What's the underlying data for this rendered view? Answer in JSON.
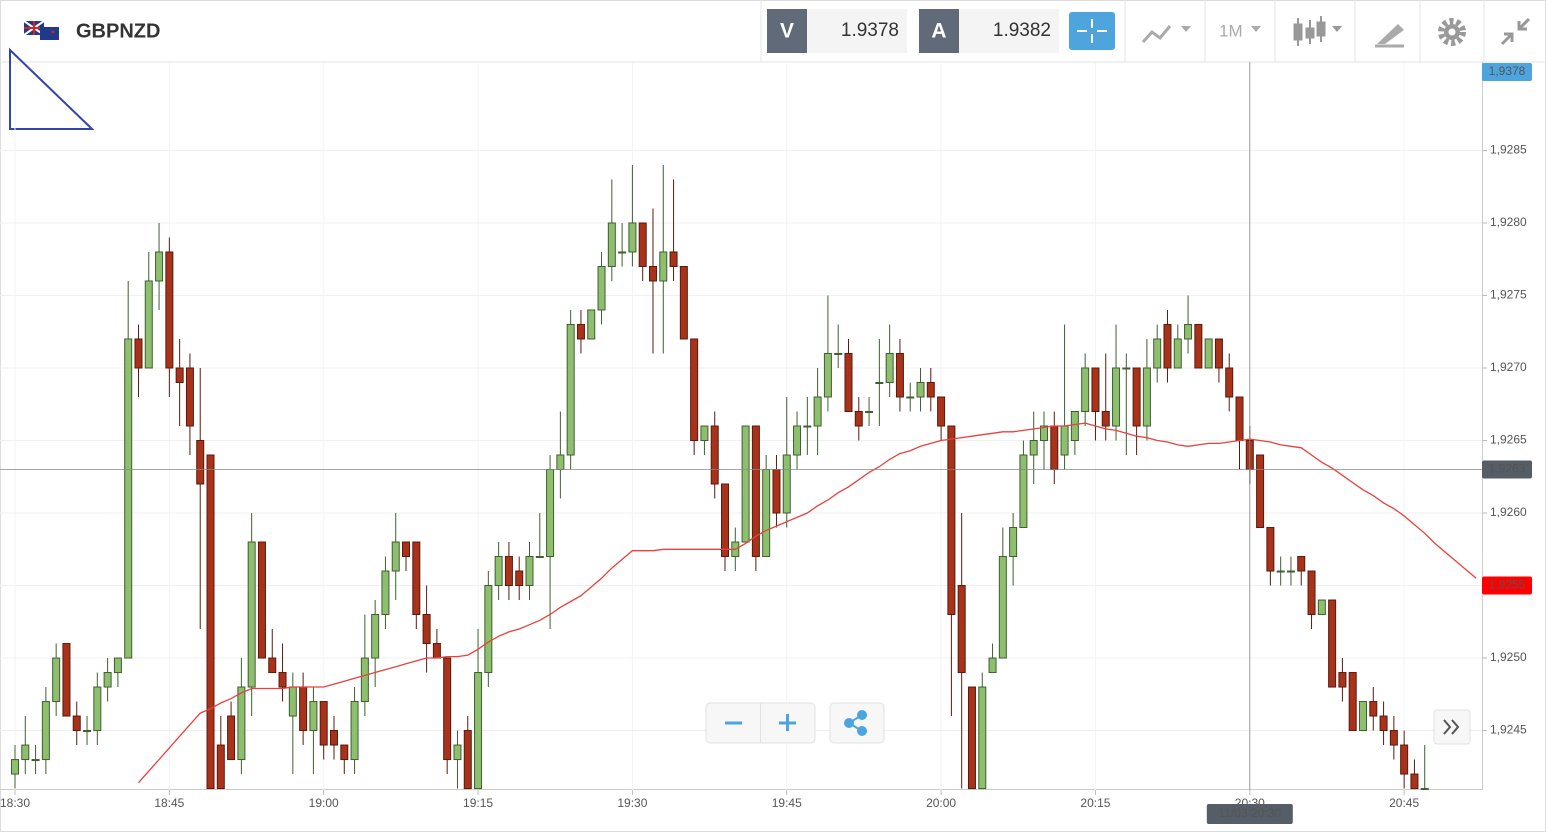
{
  "header": {
    "symbol": "GBPNZD",
    "sell_label": "V",
    "sell": 1.9378,
    "buy_label": "A",
    "buy": 1.9382,
    "timeframe": "1M"
  },
  "chart_data": {
    "type": "candlestick",
    "categories": [
      "18:30",
      null,
      null,
      null,
      null,
      null,
      null,
      null,
      null,
      null,
      null,
      null,
      null,
      null,
      null,
      "18:45",
      null,
      null,
      null,
      null,
      null,
      null,
      null,
      null,
      null,
      null,
      null,
      null,
      null,
      null,
      "19:00",
      null,
      null,
      null,
      null,
      null,
      null,
      null,
      null,
      null,
      null,
      null,
      null,
      null,
      null,
      "19:15",
      null,
      null,
      null,
      null,
      null,
      null,
      null,
      null,
      null,
      null,
      null,
      null,
      null,
      null,
      "19:30",
      null,
      null,
      null,
      null,
      null,
      null,
      null,
      null,
      null,
      null,
      null,
      null,
      null,
      null,
      "19:45",
      null,
      null,
      null,
      null,
      null,
      null,
      null,
      null,
      null,
      null,
      null,
      null,
      null,
      null,
      "20:00",
      null,
      null,
      null,
      null,
      null,
      null,
      null,
      null,
      null,
      null,
      null,
      null,
      null,
      null,
      "20:15",
      null,
      null,
      null,
      null,
      null,
      null,
      null,
      null,
      null,
      null,
      null,
      null,
      null,
      null,
      "20:30",
      null,
      null,
      null,
      null,
      null,
      null,
      null,
      null,
      null,
      null,
      null,
      null,
      null,
      null,
      "20:45",
      null,
      null,
      null,
      null,
      null,
      null,
      null
    ],
    "ohlc": [
      [
        1.9242,
        1.9244,
        1.9241,
        1.9243
      ],
      [
        1.9243,
        1.9246,
        1.9242,
        1.9244
      ],
      [
        1.9243,
        1.9244,
        1.9242,
        1.9243
      ],
      [
        1.9243,
        1.9248,
        1.9242,
        1.9247
      ],
      [
        1.9247,
        1.9251,
        1.9246,
        1.925
      ],
      [
        1.9251,
        1.9251,
        1.9246,
        1.9246
      ],
      [
        1.9246,
        1.9247,
        1.9244,
        1.9245
      ],
      [
        1.9245,
        1.9246,
        1.9244,
        1.9245
      ],
      [
        1.9245,
        1.9249,
        1.9244,
        1.9248
      ],
      [
        1.9248,
        1.925,
        1.9247,
        1.9249
      ],
      [
        1.9249,
        1.925,
        1.9248,
        1.925
      ],
      [
        1.925,
        1.9276,
        1.925,
        1.9272
      ],
      [
        1.9272,
        1.9273,
        1.9268,
        1.927
      ],
      [
        1.927,
        1.9278,
        1.927,
        1.9276
      ],
      [
        1.9276,
        1.928,
        1.9274,
        1.9278
      ],
      [
        1.9278,
        1.9279,
        1.9268,
        1.927
      ],
      [
        1.927,
        1.9272,
        1.9266,
        1.9269
      ],
      [
        1.927,
        1.9271,
        1.9264,
        1.9266
      ],
      [
        1.9265,
        1.927,
        1.9252,
        1.9262
      ],
      [
        1.9264,
        1.9264,
        1.9241,
        1.9241
      ],
      [
        1.9244,
        1.9246,
        1.9241,
        1.9241
      ],
      [
        1.9246,
        1.9247,
        1.9243,
        1.9243
      ],
      [
        1.9243,
        1.925,
        1.9242,
        1.9248
      ],
      [
        1.9248,
        1.926,
        1.9246,
        1.9258
      ],
      [
        1.9258,
        1.9258,
        1.925,
        1.925
      ],
      [
        1.925,
        1.9252,
        1.9249,
        1.9249
      ],
      [
        1.9249,
        1.9251,
        1.9247,
        1.9248
      ],
      [
        1.9246,
        1.9249,
        1.9242,
        1.9248
      ],
      [
        1.9248,
        1.9249,
        1.9244,
        1.9245
      ],
      [
        1.9245,
        1.9248,
        1.9242,
        1.9247
      ],
      [
        1.9247,
        1.9247,
        1.9243,
        1.9244
      ],
      [
        1.9245,
        1.9246,
        1.9243,
        1.9244
      ],
      [
        1.9244,
        1.9244,
        1.9242,
        1.9243
      ],
      [
        1.9243,
        1.9248,
        1.9242,
        1.9247
      ],
      [
        1.9247,
        1.9253,
        1.9246,
        1.925
      ],
      [
        1.925,
        1.9254,
        1.9248,
        1.9253
      ],
      [
        1.9253,
        1.9257,
        1.9252,
        1.9256
      ],
      [
        1.9256,
        1.926,
        1.9254,
        1.9258
      ],
      [
        1.9258,
        1.9258,
        1.9256,
        1.9257
      ],
      [
        1.9258,
        1.9258,
        1.9252,
        1.9253
      ],
      [
        1.9253,
        1.9255,
        1.9249,
        1.9251
      ],
      [
        1.9251,
        1.9252,
        1.925,
        1.925
      ],
      [
        1.925,
        1.925,
        1.9242,
        1.9243
      ],
      [
        1.9243,
        1.9245,
        1.9241,
        1.9244
      ],
      [
        1.9245,
        1.9246,
        1.9241,
        1.9241
      ],
      [
        1.9241,
        1.9252,
        1.9241,
        1.9249
      ],
      [
        1.9249,
        1.9256,
        1.9248,
        1.9255
      ],
      [
        1.9255,
        1.9258,
        1.9254,
        1.9257
      ],
      [
        1.9257,
        1.9258,
        1.9254,
        1.9255
      ],
      [
        1.9256,
        1.9257,
        1.9254,
        1.9255
      ],
      [
        1.9255,
        1.9258,
        1.9254,
        1.9257
      ],
      [
        1.9257,
        1.926,
        1.9257,
        1.9257
      ],
      [
        1.9257,
        1.9264,
        1.9252,
        1.9263
      ],
      [
        1.9263,
        1.9267,
        1.9261,
        1.9264
      ],
      [
        1.9264,
        1.9274,
        1.9263,
        1.9273
      ],
      [
        1.9273,
        1.9274,
        1.9271,
        1.9272
      ],
      [
        1.9272,
        1.9274,
        1.9272,
        1.9274
      ],
      [
        1.9274,
        1.9278,
        1.9273,
        1.9277
      ],
      [
        1.9277,
        1.9283,
        1.9276,
        1.928
      ],
      [
        1.9278,
        1.928,
        1.9277,
        1.9278
      ],
      [
        1.9278,
        1.9284,
        1.9277,
        1.928
      ],
      [
        1.928,
        1.928,
        1.9276,
        1.9277
      ],
      [
        1.9277,
        1.9281,
        1.9271,
        1.9276
      ],
      [
        1.9276,
        1.9284,
        1.9271,
        1.9278
      ],
      [
        1.9278,
        1.9283,
        1.9276,
        1.9277
      ],
      [
        1.9277,
        1.9277,
        1.9272,
        1.9272
      ],
      [
        1.9272,
        1.9272,
        1.9264,
        1.9265
      ],
      [
        1.9265,
        1.9266,
        1.9264,
        1.9266
      ],
      [
        1.9266,
        1.9267,
        1.9261,
        1.9262
      ],
      [
        1.9262,
        1.9262,
        1.9256,
        1.9257
      ],
      [
        1.9257,
        1.9259,
        1.9256,
        1.9258
      ],
      [
        1.9258,
        1.9266,
        1.9258,
        1.9266
      ],
      [
        1.9266,
        1.9266,
        1.9256,
        1.9257
      ],
      [
        1.9257,
        1.9264,
        1.9257,
        1.9263
      ],
      [
        1.9263,
        1.9264,
        1.9259,
        1.926
      ],
      [
        1.926,
        1.9268,
        1.9259,
        1.9264
      ],
      [
        1.9264,
        1.9267,
        1.9263,
        1.9266
      ],
      [
        1.9266,
        1.9268,
        1.9264,
        1.9266
      ],
      [
        1.9266,
        1.927,
        1.9264,
        1.9268
      ],
      [
        1.9268,
        1.9275,
        1.9267,
        1.9271
      ],
      [
        1.9271,
        1.9273,
        1.927,
        1.9271
      ],
      [
        1.9271,
        1.9272,
        1.9267,
        1.9267
      ],
      [
        1.9267,
        1.9268,
        1.9265,
        1.9266
      ],
      [
        1.9267,
        1.9268,
        1.9266,
        1.9267
      ],
      [
        1.9269,
        1.9272,
        1.9266,
        1.9269
      ],
      [
        1.9269,
        1.9273,
        1.9268,
        1.9271
      ],
      [
        1.9271,
        1.9272,
        1.9267,
        1.9268
      ],
      [
        1.9268,
        1.9269,
        1.9267,
        1.9268
      ],
      [
        1.9268,
        1.927,
        1.9267,
        1.9269
      ],
      [
        1.9269,
        1.927,
        1.9267,
        1.9268
      ],
      [
        1.9268,
        1.9268,
        1.9265,
        1.9266
      ],
      [
        1.9266,
        1.9266,
        1.9246,
        1.9253
      ],
      [
        1.9255,
        1.926,
        1.9241,
        1.9249
      ],
      [
        1.9248,
        1.9248,
        1.9241,
        1.9241
      ],
      [
        1.9241,
        1.9249,
        1.9241,
        1.9248
      ],
      [
        1.9249,
        1.9251,
        1.9249,
        1.925
      ],
      [
        1.925,
        1.9259,
        1.925,
        1.9257
      ],
      [
        1.9257,
        1.926,
        1.9255,
        1.9259
      ],
      [
        1.9259,
        1.9265,
        1.9259,
        1.9264
      ],
      [
        1.9264,
        1.9267,
        1.9262,
        1.9265
      ],
      [
        1.9265,
        1.9267,
        1.9263,
        1.9266
      ],
      [
        1.9266,
        1.9267,
        1.9262,
        1.9263
      ],
      [
        1.9264,
        1.9273,
        1.9263,
        1.9266
      ],
      [
        1.9265,
        1.9267,
        1.9264,
        1.9267
      ],
      [
        1.9267,
        1.9271,
        1.9266,
        1.927
      ],
      [
        1.927,
        1.927,
        1.9265,
        1.9267
      ],
      [
        1.9267,
        1.9271,
        1.9265,
        1.9266
      ],
      [
        1.9266,
        1.9273,
        1.9265,
        1.927
      ],
      [
        1.927,
        1.9271,
        1.9264,
        1.927
      ],
      [
        1.927,
        1.927,
        1.9264,
        1.9266
      ],
      [
        1.9266,
        1.9272,
        1.9265,
        1.927
      ],
      [
        1.927,
        1.9273,
        1.9269,
        1.9272
      ],
      [
        1.9273,
        1.9274,
        1.9269,
        1.927
      ],
      [
        1.927,
        1.9273,
        1.927,
        1.9272
      ],
      [
        1.9272,
        1.9275,
        1.9271,
        1.9273
      ],
      [
        1.9273,
        1.9273,
        1.927,
        1.927
      ],
      [
        1.927,
        1.9272,
        1.927,
        1.9272
      ],
      [
        1.9272,
        1.9272,
        1.9269,
        1.927
      ],
      [
        1.927,
        1.9271,
        1.9267,
        1.9268
      ],
      [
        1.9268,
        1.9268,
        1.9263,
        1.9265
      ],
      [
        1.9265,
        1.9266,
        1.9262,
        1.9263
      ],
      [
        1.9264,
        1.9264,
        1.9259,
        1.9259
      ],
      [
        1.9259,
        1.9259,
        1.9255,
        1.9256
      ],
      [
        1.9256,
        1.9257,
        1.9255,
        1.9256
      ],
      [
        1.9256,
        1.9257,
        1.9255,
        1.9256
      ],
      [
        1.9257,
        1.9257,
        1.9255,
        1.9256
      ],
      [
        1.9256,
        1.9256,
        1.9252,
        1.9253
      ],
      [
        1.9253,
        1.9254,
        1.9253,
        1.9254
      ],
      [
        1.9254,
        1.9254,
        1.9248,
        1.9248
      ],
      [
        1.9249,
        1.925,
        1.9247,
        1.9248
      ],
      [
        1.9249,
        1.9249,
        1.9245,
        1.9245
      ],
      [
        1.9245,
        1.9247,
        1.9245,
        1.9247
      ],
      [
        1.9247,
        1.9248,
        1.9245,
        1.9246
      ],
      [
        1.9246,
        1.9247,
        1.9244,
        1.9245
      ],
      [
        1.9245,
        1.9246,
        1.9243,
        1.9244
      ],
      [
        1.9244,
        1.9245,
        1.9241,
        1.9242
      ],
      [
        1.9242,
        1.9243,
        1.9241,
        1.9241
      ],
      [
        1.9241,
        1.9244,
        1.9241,
        1.9241
      ],
      null,
      null,
      null,
      null,
      null
    ],
    "up_color": "#8dbf6f",
    "down_color": "#a8321a",
    "series": [
      {
        "type": "line",
        "color": "#e8413c",
        "values": [
          null,
          null,
          null,
          null,
          null,
          null,
          null,
          null,
          null,
          null,
          null,
          null,
          1.92414,
          1.92422,
          1.9243,
          1.92438,
          1.92446,
          1.92454,
          1.92462,
          1.92465,
          1.92469,
          1.92472,
          1.92476,
          1.92479,
          1.92479,
          1.92479,
          1.92479,
          1.9248,
          1.9248,
          1.9248,
          1.9248,
          1.92482,
          1.92484,
          1.92486,
          1.92488,
          1.9249,
          1.92492,
          1.92494,
          1.92496,
          1.92498,
          1.925,
          1.925,
          1.92501,
          1.92501,
          1.92502,
          1.92506,
          1.92511,
          1.92515,
          1.92518,
          1.9252,
          1.92523,
          1.92526,
          1.9253,
          1.92535,
          1.92539,
          1.92543,
          1.92549,
          1.92555,
          1.92562,
          1.92568,
          1.92574,
          1.92574,
          1.92574,
          1.92575,
          1.92575,
          1.92575,
          1.92575,
          1.92575,
          1.92575,
          1.92575,
          1.92575,
          1.92579,
          1.92584,
          1.92588,
          1.92591,
          1.92594,
          1.92597,
          1.926,
          1.92605,
          1.92609,
          1.92614,
          1.92618,
          1.92623,
          1.92628,
          1.92632,
          1.92637,
          1.92641,
          1.92643,
          1.92646,
          1.92648,
          1.9265,
          1.92651,
          1.92652,
          1.92653,
          1.92654,
          1.92655,
          1.92656,
          1.92656,
          1.92657,
          1.92658,
          1.92659,
          1.9266,
          1.9266,
          1.92661,
          1.92662,
          1.9266,
          1.92658,
          1.92657,
          1.92655,
          1.92653,
          1.92652,
          1.9265,
          1.92649,
          1.92647,
          1.92646,
          1.92647,
          1.92648,
          1.92648,
          1.92649,
          1.9265,
          1.92651,
          1.9265,
          1.92649,
          1.92647,
          1.92646,
          1.92645,
          1.9264,
          1.92635,
          1.92631,
          1.92626,
          1.92621,
          1.92616,
          1.92612,
          1.92607,
          1.92603,
          1.92598,
          1.92592,
          1.92586,
          1.92579,
          1.92573,
          1.92567,
          1.92561,
          1.92555
        ]
      }
    ],
    "ylim": [
      1.92409,
      1.92911
    ],
    "yticks": [
      {
        "value": 1.9245,
        "label": "1,9245"
      },
      {
        "value": 1.925,
        "label": "1,9250"
      },
      {
        "value": 1.9255,
        "label": "1,9255"
      },
      {
        "value": 1.926,
        "label": "1,9260"
      },
      {
        "value": 1.9265,
        "label": "1,9265"
      },
      {
        "value": 1.927,
        "label": "1,9270"
      },
      {
        "value": 1.9275,
        "label": "1,9275"
      },
      {
        "value": 1.928,
        "label": "1,9280"
      },
      {
        "value": 1.9285,
        "label": "1,9285"
      }
    ],
    "grid": true,
    "crosshair": {
      "value": 1.9263,
      "label": "1,9263",
      "index": 120,
      "x_label": "11/03 20:30"
    },
    "price_labels": [
      {
        "value": 1.9378,
        "label": "1,9378",
        "color": "#4ea5dd",
        "pinned": "top"
      },
      {
        "value": 1.9255,
        "label": "1,9255",
        "color": "#ff0000"
      }
    ]
  }
}
